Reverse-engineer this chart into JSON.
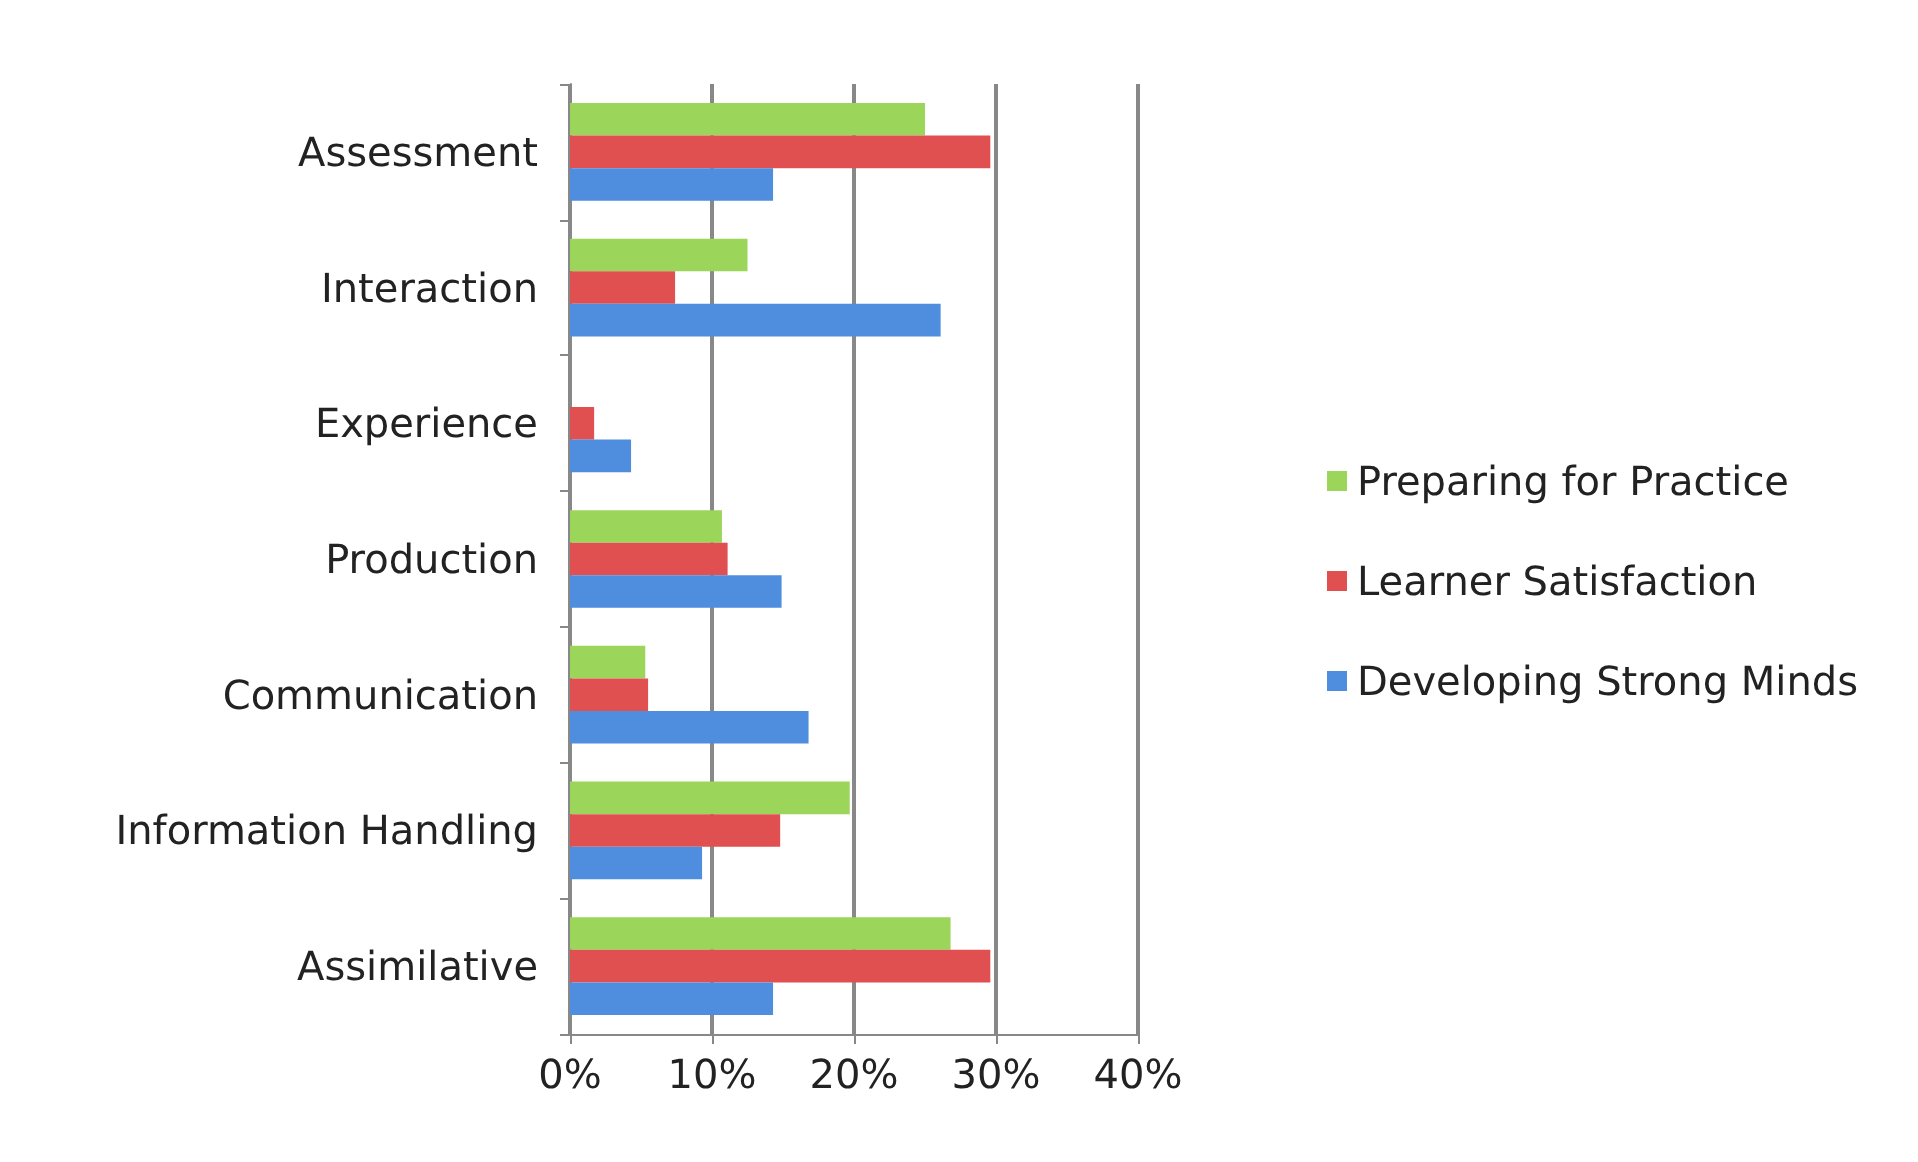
{
  "chart_data": {
    "type": "bar",
    "orientation": "horizontal",
    "categories": [
      "Assessment",
      "Interaction",
      "Experience",
      "Production",
      "Communication",
      "Information Handling",
      "Assimilative"
    ],
    "series": [
      {
        "name": "Preparing for Practice",
        "color": "#9bd55a",
        "values": [
          25.0,
          12.5,
          null,
          10.7,
          5.3,
          19.7,
          26.8
        ]
      },
      {
        "name": "Learner Satisfaction",
        "color": "#e05050",
        "values": [
          29.6,
          7.4,
          1.7,
          11.1,
          5.5,
          14.8,
          29.6
        ]
      },
      {
        "name": "Developing Strong Minds",
        "color": "#4f8ddf",
        "values": [
          14.3,
          26.1,
          4.3,
          14.9,
          16.8,
          9.3,
          14.3
        ]
      }
    ],
    "xlim": [
      0,
      40
    ],
    "xticks": [
      {
        "value": 0,
        "label": "0%"
      },
      {
        "value": 10,
        "label": "10%"
      },
      {
        "value": 20,
        "label": "20%"
      },
      {
        "value": 30,
        "label": "30%"
      },
      {
        "value": 40,
        "label": "40%"
      }
    ],
    "grid": "x",
    "legend": "right"
  }
}
